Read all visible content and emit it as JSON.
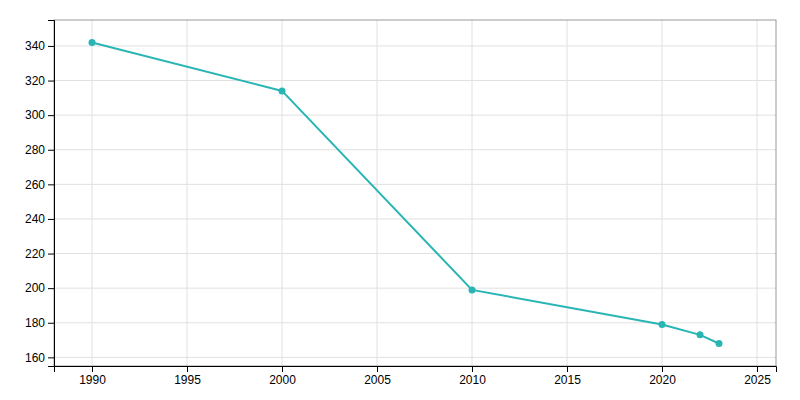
{
  "chart_data": {
    "type": "line",
    "x": [
      1990,
      2000,
      2010,
      2020,
      2022,
      2023
    ],
    "values": [
      342,
      314,
      199,
      179,
      173,
      168
    ],
    "color": "#2ab5b5",
    "marker": "circle",
    "xlim": [
      1988,
      2026
    ],
    "ylim": [
      155,
      355
    ],
    "xticks": [
      1990,
      1995,
      2000,
      2005,
      2010,
      2015,
      2020,
      2025
    ],
    "yticks": [
      160,
      180,
      200,
      220,
      240,
      260,
      280,
      300,
      320,
      340
    ],
    "grid": true
  }
}
